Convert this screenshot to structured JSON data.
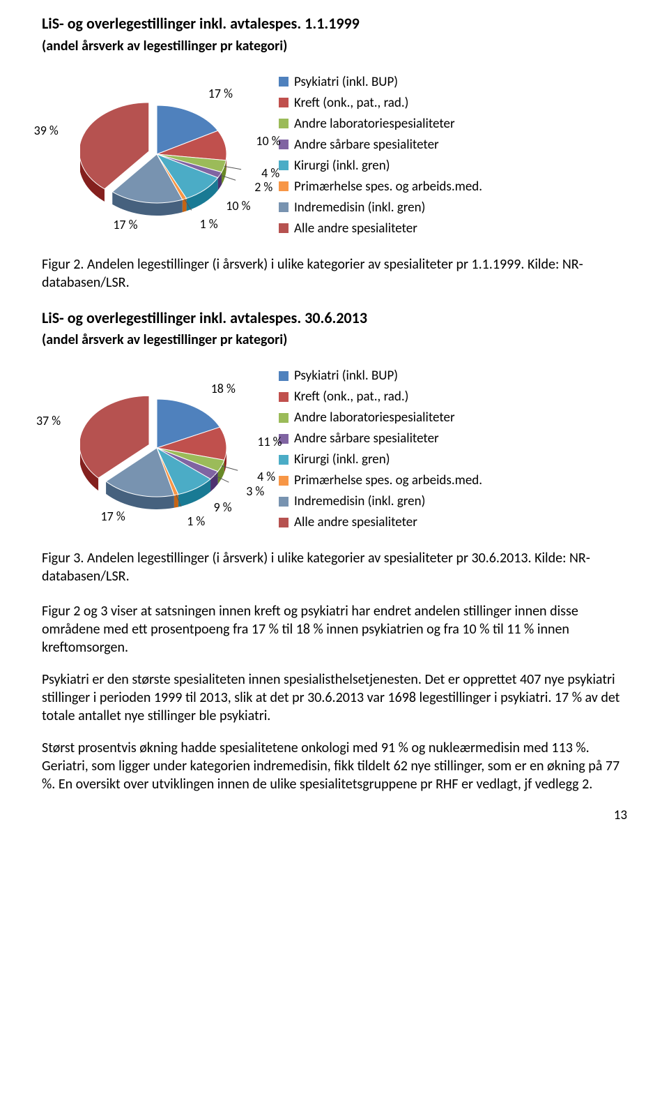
{
  "legend_colors": {
    "psykiatri": "#4f81bd",
    "kreft": "#c0504d",
    "lab": "#9bbb59",
    "sarbare": "#8064a2",
    "kirurgi": "#4bacc6",
    "primar": "#f79646",
    "indremed": "#7893b0",
    "alle": "#b65250"
  },
  "legend_labels": {
    "psykiatri": "Psykiatri (inkl. BUP)",
    "kreft": "Kreft (onk., pat., rad.)",
    "lab": "Andre laboratoriespesialiteter",
    "sarbare": "Andre sårbare spesialiteter",
    "kirurgi": "Kirurgi (inkl. gren)",
    "primar": "Primærhelse spes. og arbeids.med.",
    "indremed": "Indremedisin (inkl. gren)",
    "alle": "Alle andre spesialiteter"
  },
  "chart1": {
    "title": "LiS- og overlegestillinger inkl. avtalespes. 1.1.1999",
    "subtitle": "(andel årsverk av legestillinger pr kategori)",
    "type": "pie",
    "slices": [
      {
        "key": "psykiatri",
        "pct": 17,
        "label": "17 %"
      },
      {
        "key": "kreft",
        "pct": 10,
        "label": "10 %"
      },
      {
        "key": "lab",
        "pct": 4,
        "label": "4 %"
      },
      {
        "key": "sarbare",
        "pct": 2,
        "label": "2 %"
      },
      {
        "key": "kirurgi",
        "pct": 10,
        "label": "10 %"
      },
      {
        "key": "primar",
        "pct": 1,
        "label": "1 %"
      },
      {
        "key": "indremed",
        "pct": 17,
        "label": "17 %"
      },
      {
        "key": "alle",
        "pct": 39,
        "label": "39 %"
      }
    ],
    "exploded": "alle",
    "caption": "Figur 2. Andelen legestillinger (i årsverk) i ulike kategorier av spesialiteter pr 1.1.1999. Kilde: NR-databasen/LSR."
  },
  "chart2": {
    "title": "LiS- og overlegestillinger inkl. avtalespes. 30.6.2013",
    "subtitle": "(andel årsverk av legestillinger pr kategori)",
    "type": "pie",
    "slices": [
      {
        "key": "psykiatri",
        "pct": 18,
        "label": "18 %"
      },
      {
        "key": "kreft",
        "pct": 11,
        "label": "11 %"
      },
      {
        "key": "lab",
        "pct": 4,
        "label": "4 %"
      },
      {
        "key": "sarbare",
        "pct": 3,
        "label": "3 %"
      },
      {
        "key": "kirurgi",
        "pct": 9,
        "label": "9 %"
      },
      {
        "key": "primar",
        "pct": 1,
        "label": "1 %"
      },
      {
        "key": "indremed",
        "pct": 17,
        "label": "17 %"
      },
      {
        "key": "alle",
        "pct": 37,
        "label": "37 %"
      }
    ],
    "exploded": "alle",
    "caption": "Figur 3. Andelen legestillinger (i årsverk) i ulike kategorier av spesialiteter pr 30.6.2013. Kilde: NR-databasen/LSR."
  },
  "paragraphs": {
    "p1": "Figur 2 og 3 viser at satsningen innen kreft og psykiatri har endret andelen stillinger innen disse områdene med ett prosentpoeng fra 17 % til 18 % innen psykiatrien og fra 10 % til 11 % innen kreftomsorgen.",
    "p2": "Psykiatri er den største spesialiteten innen spesialisthelsetjenesten. Det er opprettet 407 nye psykiatri stillinger i perioden 1999 til 2013, slik at det pr 30.6.2013 var  1698 legestillinger i psykiatri. 17 % av det totale antallet nye stillinger ble psykiatri.",
    "p3": "Størst prosentvis økning hadde spesialitetene onkologi med 91 % og nukleærmedisin med 113 %. Geriatri, som ligger under kategorien indremedisin, fikk tildelt 62 nye stillinger, som er en økning på 77 %. En oversikt over utviklingen innen de ulike spesialitetsgruppene pr RHF er vedlagt, jf vedlegg 2."
  },
  "page_number": "13"
}
